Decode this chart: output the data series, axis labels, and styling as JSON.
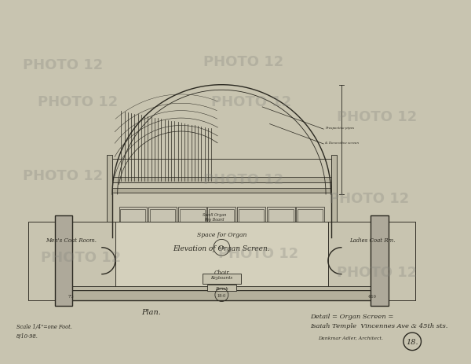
{
  "bg_color": "#c8c4b0",
  "paper_color": "#d4d0bc",
  "line_color": "#2a2820",
  "title": "Detail = Organ Screen =\nIsaiah Temple  Vincennes Ave & 45th sts.",
  "subtitle": "Dankmar Adler, Architect.",
  "scale_text": "Scale 1/4\"=one Foot.\n8/10-98.",
  "plan_label": "Plan.",
  "elevation_label": "Elevation of Organ Screen.",
  "sheet_number": "18.",
  "label_mens": "Men's Coat Room.",
  "label_organ": "Space for Organ",
  "label_ladies": "Ladies Coat Rm.",
  "label_choir": "Choir",
  "watermark": "PHOTO 12",
  "figsize": [
    6.0,
    4.64
  ],
  "dpi": 100
}
